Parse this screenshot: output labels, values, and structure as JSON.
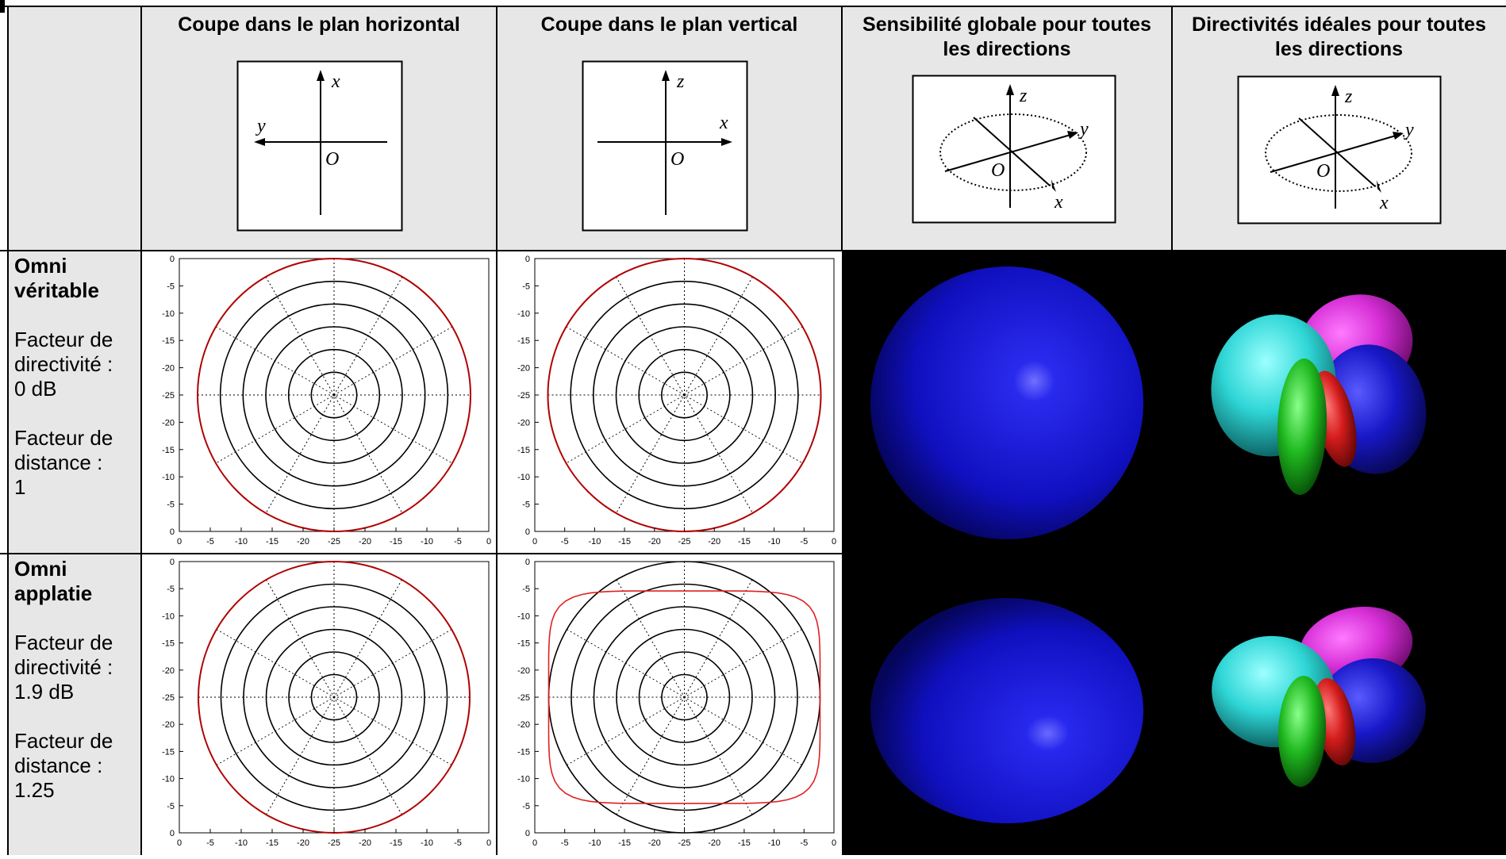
{
  "headers": {
    "horizontal": "Coupe dans le plan horizontal",
    "vertical": "Coupe dans le plan vertical",
    "global": "Sensibilité globale pour toutes les directions",
    "ideal": "Directivités idéales pour toutes les directions"
  },
  "axes_diagrams": {
    "horizontal": {
      "up": "x",
      "left": "y",
      "origin": "O"
    },
    "vertical": {
      "up": "z",
      "right": "x",
      "origin": "O"
    },
    "global": {
      "up": "z",
      "right": "y",
      "down": "x",
      "origin": "O"
    },
    "ideal": {
      "up": "z",
      "right": "y",
      "down": "x",
      "origin": "O"
    }
  },
  "rows": [
    {
      "name": "Omni véritable",
      "name_lines": [
        "Omni",
        "véritable"
      ],
      "directivity_label": [
        "Facteur de",
        "directivité :"
      ],
      "directivity_value": "0 dB",
      "distance_label": [
        "Facteur de",
        "distance :"
      ],
      "distance_value": "1"
    },
    {
      "name": "Omni applatie",
      "name_lines": [
        "Omni",
        "applatie"
      ],
      "directivity_label": [
        "Facteur de",
        "directivité :"
      ],
      "directivity_value": "1.9 dB",
      "distance_label": [
        "Facteur de",
        "distance :"
      ],
      "distance_value": "1.25"
    }
  ],
  "chart_data": [
    {
      "type": "polar",
      "row": "Omni véritable",
      "plane": "horizontal",
      "y_ticks": [
        "0",
        "-5",
        "-10",
        "-15",
        "-20",
        "-25",
        "-20",
        "-15",
        "-10",
        "-5",
        "0"
      ],
      "x_ticks": [
        "0",
        "-5",
        "-10",
        "-15",
        "-20",
        "-25",
        "-20",
        "-15",
        "-10",
        "-5",
        "0"
      ],
      "rings_db": [
        -5,
        -10,
        -15,
        -20,
        -25
      ],
      "radial_range_db": [
        -30,
        0
      ],
      "pattern": {
        "shape": "circle",
        "level_db": 0
      },
      "pattern_color": "#b00000"
    },
    {
      "type": "polar",
      "row": "Omni véritable",
      "plane": "vertical",
      "y_ticks": [
        "0",
        "-5",
        "-10",
        "-15",
        "-20",
        "-25",
        "-20",
        "-15",
        "-10",
        "-5",
        "0"
      ],
      "x_ticks": [
        "0",
        "-5",
        "-10",
        "-15",
        "-20",
        "-25",
        "-20",
        "-15",
        "-10",
        "-5",
        "0"
      ],
      "rings_db": [
        -5,
        -10,
        -15,
        -20,
        -25
      ],
      "radial_range_db": [
        -30,
        0
      ],
      "pattern": {
        "shape": "circle",
        "level_db": 0
      },
      "pattern_color": "#b00000"
    },
    {
      "type": "polar",
      "row": "Omni applatie",
      "plane": "horizontal",
      "y_ticks": [
        "0",
        "-5",
        "-10",
        "-15",
        "-20",
        "-25",
        "-20",
        "-15",
        "-10",
        "-5",
        "0"
      ],
      "x_ticks": [
        "0",
        "-5",
        "-10",
        "-15",
        "-20",
        "-25",
        "-20",
        "-15",
        "-10",
        "-5",
        "0"
      ],
      "rings_db": [
        -5,
        -10,
        -15,
        -20,
        -25
      ],
      "radial_range_db": [
        -30,
        0
      ],
      "pattern": {
        "shape": "circle",
        "level_db": 0
      },
      "pattern_color": "#b00000"
    },
    {
      "type": "polar",
      "row": "Omni applatie",
      "plane": "vertical",
      "y_ticks": [
        "0",
        "-5",
        "-10",
        "-15",
        "-20",
        "-25",
        "-20",
        "-15",
        "-10",
        "-5",
        "0"
      ],
      "x_ticks": [
        "0",
        "-5",
        "-10",
        "-15",
        "-20",
        "-25",
        "-20",
        "-15",
        "-10",
        "-5",
        "0"
      ],
      "rings_db": [
        -5,
        -10,
        -15,
        -20,
        -25
      ],
      "radial_range_db": [
        -30,
        0
      ],
      "pattern": {
        "shape": "flattened",
        "horizontal_db": 0,
        "vertical_db": -6.5
      },
      "pattern_color": "#e02020"
    }
  ],
  "colors": {
    "header_bg": "#e7e7e7",
    "sphere": "#1a1adc",
    "lobe_cyan": "#2fd6d6",
    "lobe_magenta": "#d62fd6",
    "lobe_blue": "#1818c8",
    "lobe_green": "#1fb81f",
    "lobe_red": "#d41c1c"
  }
}
